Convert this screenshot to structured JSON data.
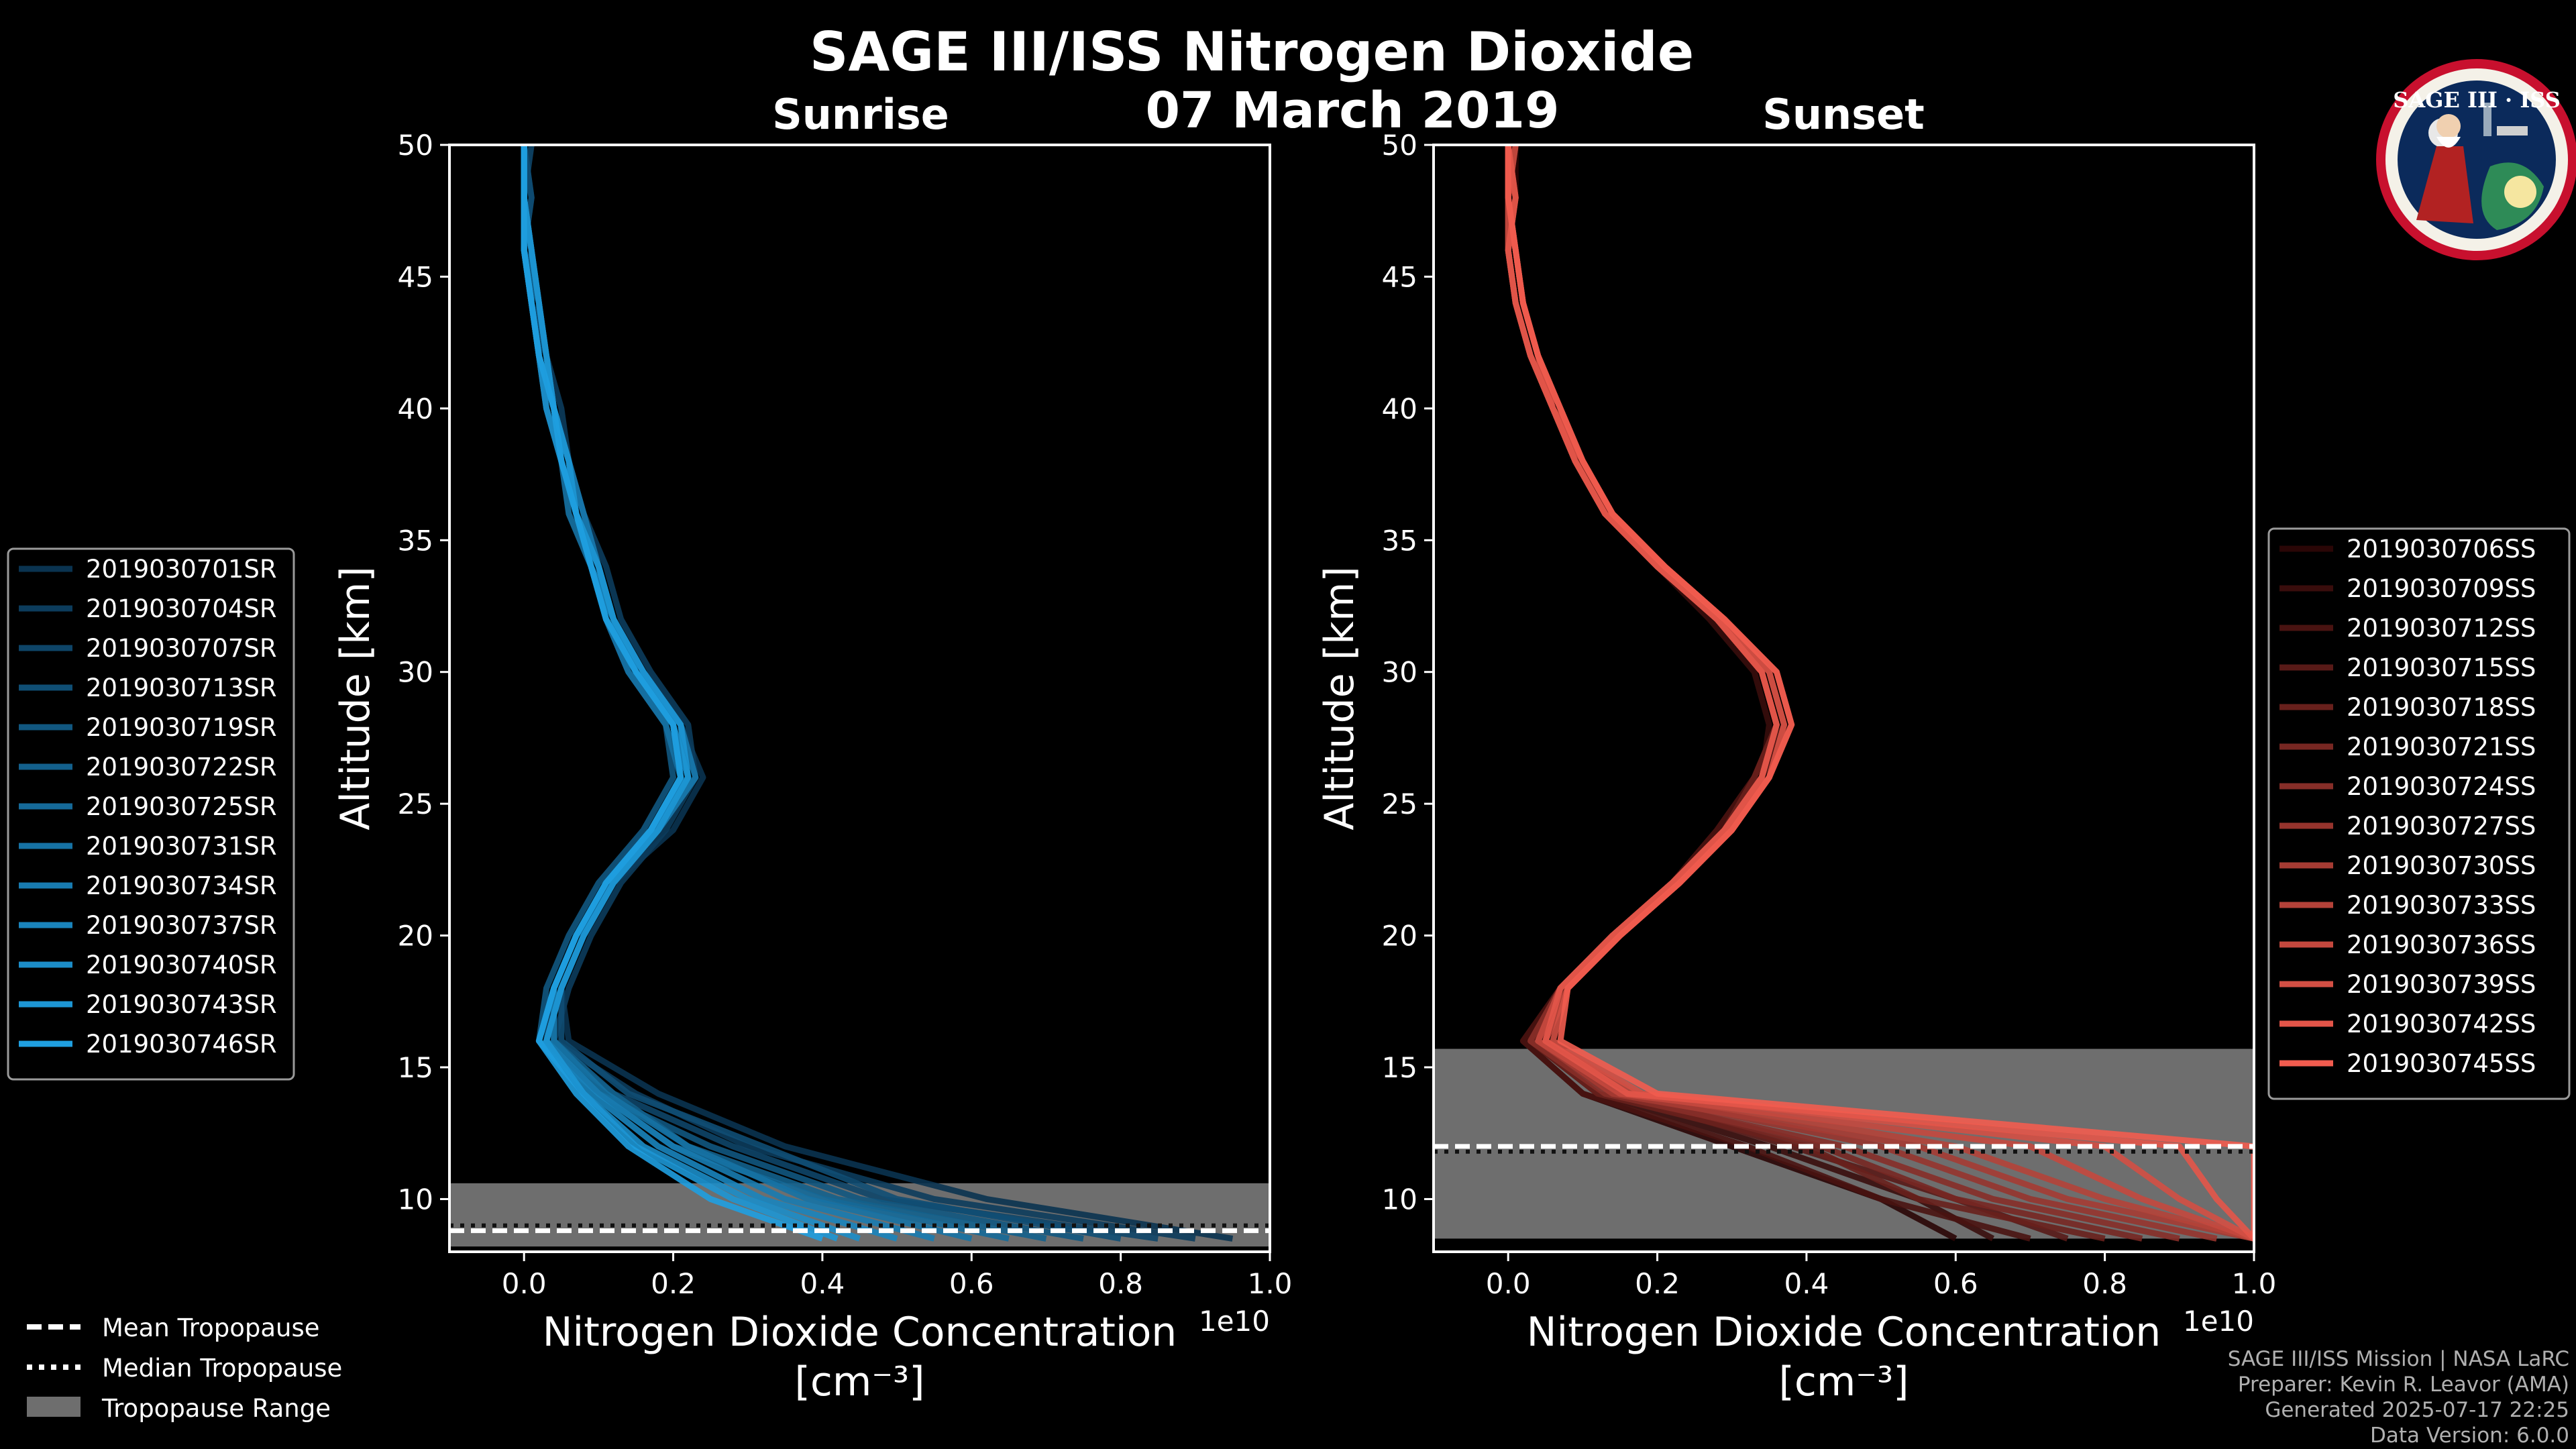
{
  "header": {
    "title": "SAGE III/ISS Nitrogen Dioxide",
    "date": "07 March 2019"
  },
  "logo": {
    "text": "SAGE III · ISS",
    "colors": {
      "ring": "#c8102e",
      "inner": "#0b2a5b",
      "globe": "#2e8b57"
    }
  },
  "colors": {
    "background": "#000000",
    "sunrise_light": "#1f9fe0",
    "sunrise_dark": "#0a3350",
    "sunset_light": "#f25c4f",
    "sunset_dark": "#2a0606",
    "tropopause_range": "#6e6e6e",
    "mean_tropopause": "#ffffff"
  },
  "chart_data": [
    {
      "type": "line",
      "title": "Sunrise",
      "xlabel": "Nitrogen Dioxide Concentration",
      "xlabel_units": "[cm⁻³]",
      "ylabel": "Altitude [km]",
      "x_scale_label": "1e10",
      "xlim": [
        -0.1,
        1.0
      ],
      "ylim": [
        8,
        50
      ],
      "x_ticks": [
        0.0,
        0.2,
        0.4,
        0.6,
        0.8,
        1.0
      ],
      "x_tick_labels": [
        "0.0",
        "0.2",
        "0.4",
        "0.6",
        "0.8",
        "1.0"
      ],
      "y_ticks": [
        10,
        15,
        20,
        25,
        30,
        35,
        40,
        45,
        50
      ],
      "y_tick_labels": [
        "10",
        "15",
        "20",
        "25",
        "30",
        "35",
        "40",
        "45",
        "50"
      ],
      "grid": false,
      "legend_position": "left",
      "profile_altitudes": [
        8.5,
        10,
        12,
        14,
        16,
        18,
        20,
        22,
        24,
        26,
        28,
        30,
        32,
        34,
        36,
        38,
        40,
        42,
        44,
        46,
        48,
        50
      ],
      "series": [
        {
          "name": "2019030701SR",
          "values": [
            0.95,
            0.62,
            0.35,
            0.18,
            0.06,
            0.05,
            0.08,
            0.12,
            0.2,
            0.24,
            0.21,
            0.16,
            0.12,
            0.1,
            0.08,
            0.06,
            0.04,
            0.03,
            0.02,
            0.0,
            0.01,
            0.0
          ]
        },
        {
          "name": "2019030704SR",
          "values": [
            0.9,
            0.55,
            0.3,
            0.15,
            0.04,
            0.06,
            0.09,
            0.13,
            0.19,
            0.23,
            0.22,
            0.17,
            0.13,
            0.11,
            0.08,
            0.06,
            0.05,
            0.03,
            0.02,
            0.01,
            0.0,
            0.0
          ]
        },
        {
          "name": "2019030707SR",
          "values": [
            0.85,
            0.48,
            0.28,
            0.12,
            0.03,
            0.04,
            0.07,
            0.12,
            0.18,
            0.22,
            0.21,
            0.16,
            0.12,
            0.1,
            0.07,
            0.06,
            0.04,
            0.03,
            0.01,
            0.01,
            0.0,
            0.01
          ]
        },
        {
          "name": "2019030713SR",
          "values": [
            0.8,
            0.5,
            0.32,
            0.14,
            0.05,
            0.05,
            0.08,
            0.11,
            0.17,
            0.21,
            0.2,
            0.15,
            0.12,
            0.09,
            0.07,
            0.05,
            0.04,
            0.02,
            0.02,
            0.0,
            0.01,
            0.0
          ]
        },
        {
          "name": "2019030719SR",
          "values": [
            0.75,
            0.45,
            0.25,
            0.1,
            0.02,
            0.03,
            0.06,
            0.1,
            0.16,
            0.2,
            0.19,
            0.14,
            0.11,
            0.09,
            0.07,
            0.05,
            0.03,
            0.02,
            0.01,
            0.0,
            0.0,
            0.0
          ]
        },
        {
          "name": "2019030722SR",
          "values": [
            0.7,
            0.42,
            0.22,
            0.12,
            0.04,
            0.04,
            0.07,
            0.11,
            0.17,
            0.21,
            0.2,
            0.15,
            0.11,
            0.09,
            0.07,
            0.05,
            0.04,
            0.02,
            0.01,
            0.01,
            0.0,
            0.0
          ]
        },
        {
          "name": "2019030725SR",
          "values": [
            0.65,
            0.4,
            0.2,
            0.1,
            0.03,
            0.05,
            0.08,
            0.12,
            0.18,
            0.22,
            0.2,
            0.15,
            0.12,
            0.1,
            0.07,
            0.06,
            0.04,
            0.03,
            0.02,
            0.01,
            0.0,
            0.0
          ]
        },
        {
          "name": "2019030731SR",
          "values": [
            0.6,
            0.38,
            0.22,
            0.11,
            0.04,
            0.04,
            0.07,
            0.11,
            0.17,
            0.21,
            0.19,
            0.14,
            0.11,
            0.09,
            0.06,
            0.05,
            0.03,
            0.02,
            0.01,
            0.0,
            0.0,
            0.0
          ]
        },
        {
          "name": "2019030734SR",
          "values": [
            0.55,
            0.35,
            0.2,
            0.1,
            0.03,
            0.05,
            0.08,
            0.12,
            0.18,
            0.23,
            0.21,
            0.16,
            0.12,
            0.1,
            0.08,
            0.06,
            0.04,
            0.03,
            0.02,
            0.01,
            0.0,
            0.0
          ]
        },
        {
          "name": "2019030737SR",
          "values": [
            0.5,
            0.32,
            0.18,
            0.09,
            0.02,
            0.04,
            0.07,
            0.11,
            0.17,
            0.22,
            0.2,
            0.15,
            0.12,
            0.09,
            0.07,
            0.05,
            0.04,
            0.02,
            0.01,
            0.0,
            0.0,
            0.0
          ]
        },
        {
          "name": "2019030740SR",
          "values": [
            0.45,
            0.3,
            0.16,
            0.08,
            0.02,
            0.04,
            0.07,
            0.11,
            0.17,
            0.21,
            0.2,
            0.15,
            0.11,
            0.09,
            0.07,
            0.05,
            0.03,
            0.02,
            0.01,
            0.0,
            0.0,
            0.0
          ]
        },
        {
          "name": "2019030743SR",
          "values": [
            0.42,
            0.28,
            0.15,
            0.08,
            0.03,
            0.05,
            0.08,
            0.12,
            0.18,
            0.22,
            0.21,
            0.16,
            0.12,
            0.1,
            0.07,
            0.06,
            0.04,
            0.03,
            0.02,
            0.01,
            0.0,
            0.0
          ]
        },
        {
          "name": "2019030746SR",
          "values": [
            0.4,
            0.25,
            0.14,
            0.07,
            0.02,
            0.04,
            0.07,
            0.11,
            0.17,
            0.21,
            0.2,
            0.15,
            0.11,
            0.09,
            0.07,
            0.05,
            0.04,
            0.02,
            0.01,
            0.0,
            0.0,
            0.0
          ]
        }
      ],
      "tropopause": {
        "range": [
          8.2,
          10.6
        ],
        "mean": 8.8,
        "median": 9.0
      }
    },
    {
      "type": "line",
      "title": "Sunset",
      "xlabel": "Nitrogen Dioxide Concentration",
      "xlabel_units": "[cm⁻³]",
      "ylabel": "Altitude [km]",
      "x_scale_label": "1e10",
      "xlim": [
        -0.1,
        1.0
      ],
      "ylim": [
        8,
        50
      ],
      "x_ticks": [
        0.0,
        0.2,
        0.4,
        0.6,
        0.8,
        1.0
      ],
      "x_tick_labels": [
        "0.0",
        "0.2",
        "0.4",
        "0.6",
        "0.8",
        "1.0"
      ],
      "y_ticks": [
        10,
        15,
        20,
        25,
        30,
        35,
        40,
        45,
        50
      ],
      "y_tick_labels": [
        "10",
        "15",
        "20",
        "25",
        "30",
        "35",
        "40",
        "45",
        "50"
      ],
      "grid": false,
      "legend_position": "right",
      "profile_altitudes": [
        8.5,
        10,
        12,
        14,
        16,
        18,
        20,
        22,
        24,
        26,
        28,
        30,
        32,
        34,
        36,
        38,
        40,
        42,
        44,
        46,
        48,
        50
      ],
      "series": [
        {
          "name": "2019030706SS",
          "values": [
            0.6,
            0.5,
            0.3,
            0.1,
            0.02,
            0.07,
            0.14,
            0.22,
            0.28,
            0.33,
            0.36,
            0.34,
            0.28,
            0.2,
            0.13,
            0.09,
            0.06,
            0.03,
            0.01,
            0.0,
            0.01,
            0.01
          ]
        },
        {
          "name": "2019030709SS",
          "values": [
            0.65,
            0.55,
            0.35,
            0.12,
            0.03,
            0.08,
            0.15,
            0.23,
            0.29,
            0.34,
            0.35,
            0.33,
            0.27,
            0.2,
            0.13,
            0.09,
            0.06,
            0.04,
            0.02,
            0.01,
            0.0,
            0.01
          ]
        },
        {
          "name": "2019030712SS",
          "values": [
            0.7,
            0.5,
            0.32,
            0.1,
            0.02,
            0.07,
            0.14,
            0.22,
            0.28,
            0.33,
            0.36,
            0.34,
            0.28,
            0.21,
            0.14,
            0.09,
            0.06,
            0.03,
            0.01,
            0.0,
            0.0,
            0.01
          ]
        },
        {
          "name": "2019030715SS",
          "values": [
            0.75,
            0.6,
            0.38,
            0.14,
            0.04,
            0.08,
            0.15,
            0.23,
            0.3,
            0.34,
            0.37,
            0.35,
            0.29,
            0.21,
            0.14,
            0.1,
            0.06,
            0.04,
            0.02,
            0.01,
            0.0,
            0.0
          ]
        },
        {
          "name": "2019030718SS",
          "values": [
            0.8,
            0.55,
            0.4,
            0.12,
            0.03,
            0.07,
            0.14,
            0.22,
            0.29,
            0.33,
            0.36,
            0.34,
            0.28,
            0.2,
            0.13,
            0.09,
            0.06,
            0.03,
            0.01,
            0.0,
            0.01,
            0.0
          ]
        },
        {
          "name": "2019030721SS",
          "values": [
            0.85,
            0.6,
            0.42,
            0.15,
            0.04,
            0.08,
            0.15,
            0.23,
            0.3,
            0.35,
            0.37,
            0.35,
            0.29,
            0.21,
            0.14,
            0.1,
            0.07,
            0.04,
            0.02,
            0.01,
            0.0,
            0.0
          ]
        },
        {
          "name": "2019030724SS",
          "values": [
            0.9,
            0.65,
            0.45,
            0.13,
            0.03,
            0.07,
            0.14,
            0.22,
            0.29,
            0.34,
            0.36,
            0.34,
            0.28,
            0.2,
            0.13,
            0.09,
            0.06,
            0.03,
            0.01,
            0.0,
            0.0,
            0.01
          ]
        },
        {
          "name": "2019030727SS",
          "values": [
            0.95,
            0.7,
            0.5,
            0.16,
            0.05,
            0.08,
            0.15,
            0.23,
            0.3,
            0.35,
            0.37,
            0.35,
            0.29,
            0.21,
            0.14,
            0.1,
            0.06,
            0.04,
            0.02,
            0.01,
            0.0,
            0.0
          ]
        },
        {
          "name": "2019030730SS",
          "values": [
            1.0,
            0.75,
            0.55,
            0.14,
            0.04,
            0.07,
            0.14,
            0.22,
            0.29,
            0.34,
            0.36,
            0.34,
            0.28,
            0.2,
            0.13,
            0.09,
            0.06,
            0.03,
            0.01,
            0.0,
            0.01,
            0.0
          ]
        },
        {
          "name": "2019030733SS",
          "values": [
            1.0,
            0.8,
            0.6,
            0.17,
            0.05,
            0.08,
            0.15,
            0.23,
            0.3,
            0.35,
            0.38,
            0.36,
            0.29,
            0.21,
            0.14,
            0.1,
            0.07,
            0.04,
            0.02,
            0.01,
            0.0,
            0.0
          ]
        },
        {
          "name": "2019030736SS",
          "values": [
            1.0,
            0.85,
            0.7,
            0.15,
            0.04,
            0.07,
            0.14,
            0.22,
            0.29,
            0.34,
            0.36,
            0.34,
            0.28,
            0.2,
            0.13,
            0.09,
            0.06,
            0.03,
            0.01,
            0.0,
            0.0,
            0.01
          ]
        },
        {
          "name": "2019030739SS",
          "values": [
            1.0,
            0.9,
            0.8,
            0.18,
            0.06,
            0.08,
            0.15,
            0.23,
            0.3,
            0.35,
            0.37,
            0.35,
            0.29,
            0.21,
            0.14,
            0.1,
            0.06,
            0.04,
            0.02,
            0.01,
            0.0,
            0.0
          ]
        },
        {
          "name": "2019030742SS",
          "values": [
            1.0,
            0.95,
            0.9,
            0.16,
            0.05,
            0.07,
            0.14,
            0.22,
            0.29,
            0.34,
            0.36,
            0.34,
            0.28,
            0.2,
            0.13,
            0.09,
            0.06,
            0.03,
            0.01,
            0.0,
            0.01,
            0.0
          ]
        },
        {
          "name": "2019030745SS",
          "values": [
            1.0,
            1.0,
            1.0,
            0.2,
            0.07,
            0.08,
            0.15,
            0.23,
            0.3,
            0.35,
            0.38,
            0.36,
            0.29,
            0.21,
            0.14,
            0.1,
            0.07,
            0.04,
            0.02,
            0.01,
            0.0,
            0.0
          ]
        }
      ],
      "tropopause": {
        "range": [
          8.5,
          15.7
        ],
        "mean": 12.0,
        "median": 11.8
      }
    }
  ],
  "tropopause_legend": {
    "mean": "Mean Tropopause",
    "median": "Median Tropopause",
    "range": "Tropopause Range"
  },
  "footer": {
    "line1": "SAGE III/ISS Mission | NASA LaRC",
    "line2": "Preparer: Kevin R. Leavor (AMA)",
    "line3": "Generated 2025-07-17 22:25",
    "line4": "Data Version: 6.0.0"
  }
}
